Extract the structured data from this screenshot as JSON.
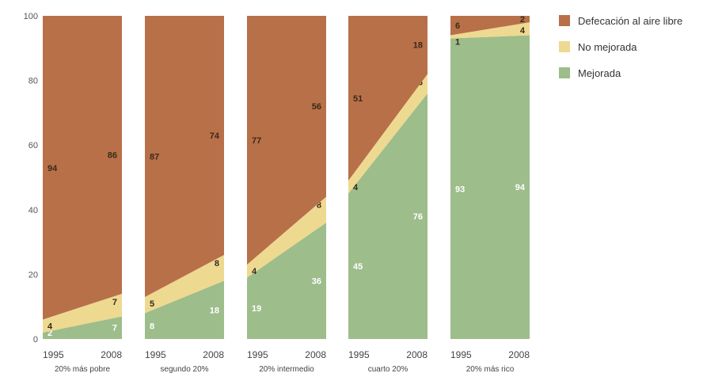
{
  "chart_data": {
    "type": "area",
    "stacked": true,
    "ylim": [
      0,
      100
    ],
    "yticks": [
      "0",
      "20",
      "40",
      "60",
      "80",
      "100"
    ],
    "years": [
      "1995",
      "2008"
    ],
    "series_order": [
      "Mejorada",
      "No mejorada",
      "Defecación al aire libre"
    ],
    "colors": {
      "Defecación al aire libre": "#b87049",
      "No mejorada": "#eed991",
      "Mejorada": "#9dbd8b"
    },
    "groups": [
      {
        "label": "20% más pobre",
        "values": {
          "Mejorada": [
            "2",
            "7"
          ],
          "No mejorada": [
            "4",
            "7"
          ],
          "Defecación al aire libre": [
            "94",
            "86"
          ]
        }
      },
      {
        "label": "segundo 20%",
        "values": {
          "Mejorada": [
            "8",
            "18"
          ],
          "No mejorada": [
            "5",
            "8"
          ],
          "Defecación al aire libre": [
            "87",
            "74"
          ]
        }
      },
      {
        "label": "20% intermedio",
        "values": {
          "Mejorada": [
            "19",
            "36"
          ],
          "No mejorada": [
            "4",
            "8"
          ],
          "Defecación al aire libre": [
            "77",
            "56"
          ]
        }
      },
      {
        "label": "cuarto 20%",
        "values": {
          "Mejorada": [
            "45",
            "76"
          ],
          "No mejorada": [
            "4",
            "6"
          ],
          "Defecación al aire libre": [
            "51",
            "18"
          ]
        }
      },
      {
        "label": "20% más rico",
        "values": {
          "Mejorada": [
            "93",
            "94"
          ],
          "No mejorada": [
            "1",
            "4"
          ],
          "Defecación al aire libre": [
            "6",
            "2"
          ]
        }
      }
    ],
    "legend": [
      "Defecación al aire libre",
      "No mejorada",
      "Mejorada"
    ]
  }
}
